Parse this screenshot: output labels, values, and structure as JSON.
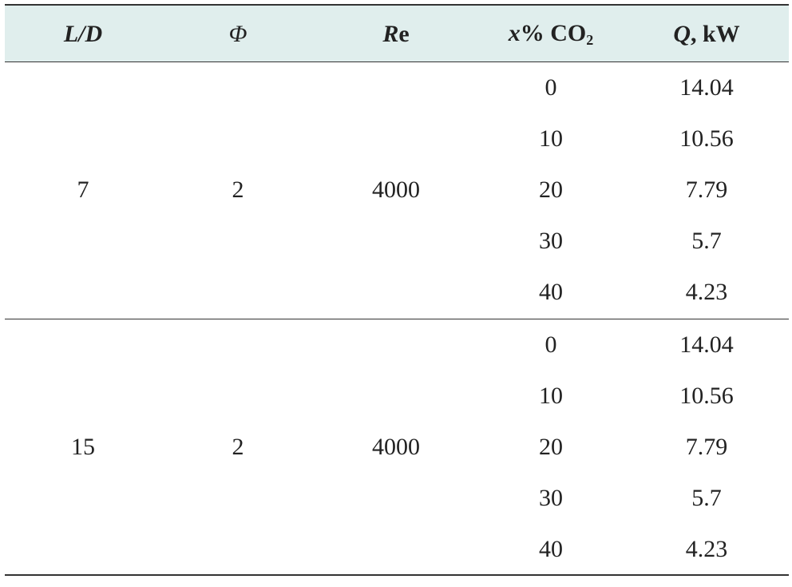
{
  "table": {
    "header": [
      [
        "L/D"
      ],
      [
        "Φ"
      ],
      [
        "R",
        "e"
      ],
      [
        "x",
        "% CO",
        "2"
      ],
      [
        "Q",
        ", kW"
      ]
    ],
    "groups": [
      {
        "cells": [
          "7",
          "2",
          "4000"
        ],
        "rows": [
          [
            "0",
            "14.04"
          ],
          [
            "10",
            "10.56"
          ],
          [
            "20",
            "7.79"
          ],
          [
            "30",
            "5.7"
          ],
          [
            "40",
            "4.23"
          ]
        ]
      },
      {
        "cells": [
          "15",
          "2",
          "4000"
        ],
        "rows": [
          [
            "0",
            "14.04"
          ],
          [
            "10",
            "10.56"
          ],
          [
            "20",
            "7.79"
          ],
          [
            "30",
            "5.7"
          ],
          [
            "40",
            "4.23"
          ]
        ]
      }
    ]
  }
}
